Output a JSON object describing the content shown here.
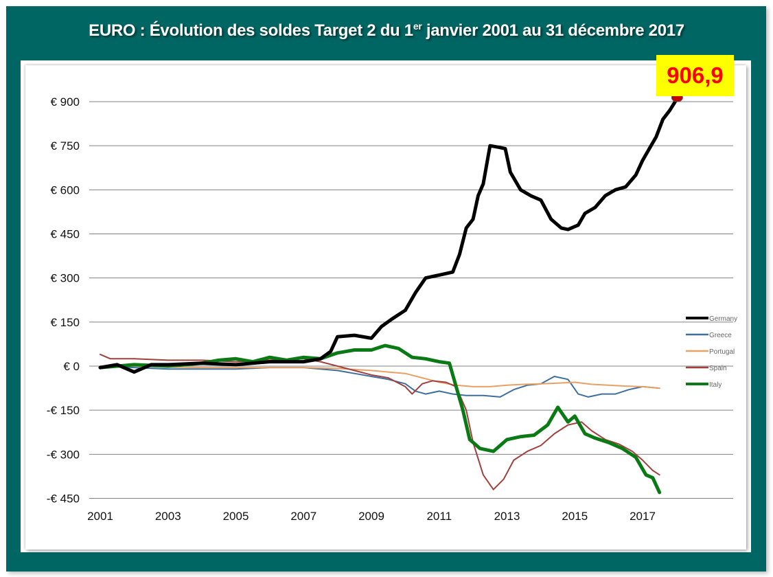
{
  "title": {
    "prefix": "EURO : Évolution des soldes Target 2 du 1",
    "superscript": "er",
    "suffix": " janvier 2001 au 31 décembre 2017"
  },
  "callout": {
    "label": "906,9",
    "background": "#ffff00",
    "text_color": "#ff0000",
    "marker_color": "#c00000"
  },
  "colors": {
    "frame": "#006663",
    "panel": "#ffffff"
  },
  "chart_data": {
    "type": "line",
    "title": "EURO : Évolution des soldes Target 2 du 1er janvier 2001 au 31 décembre 2017",
    "xlabel": "",
    "ylabel": "",
    "xlim": [
      2001,
      2019
    ],
    "ylim": [
      -450,
      900
    ],
    "grid": true,
    "legend_position": "right",
    "y_ticks": [
      {
        "value": 900,
        "label": "€ 900"
      },
      {
        "value": 750,
        "label": "€ 750"
      },
      {
        "value": 600,
        "label": "€ 600"
      },
      {
        "value": 450,
        "label": "€ 450"
      },
      {
        "value": 300,
        "label": "€ 300"
      },
      {
        "value": 150,
        "label": "€ 150"
      },
      {
        "value": 0,
        "label": "€ 0"
      },
      {
        "value": -150,
        "label": "-€ 150"
      },
      {
        "value": -300,
        "label": "-€ 300"
      },
      {
        "value": -450,
        "label": "-€ 450"
      }
    ],
    "x_ticks": [
      {
        "value": 2001,
        "label": "2001"
      },
      {
        "value": 2003,
        "label": "2003"
      },
      {
        "value": 2005,
        "label": "2005"
      },
      {
        "value": 2007,
        "label": "2007"
      },
      {
        "value": 2009,
        "label": "2009"
      },
      {
        "value": 2011,
        "label": "2011"
      },
      {
        "value": 2013,
        "label": "2013"
      },
      {
        "value": 2015,
        "label": "2015"
      },
      {
        "value": 2017,
        "label": "2017"
      }
    ],
    "series": [
      {
        "name": "Germany",
        "color": "#000000",
        "width": 5,
        "x": [
          2001,
          2001.5,
          2002,
          2002.5,
          2003,
          2004,
          2005,
          2006,
          2007,
          2007.5,
          2007.8,
          2008,
          2008.5,
          2009,
          2009.3,
          2009.6,
          2010,
          2010.3,
          2010.6,
          2011,
          2011.4,
          2011.6,
          2011.8,
          2012,
          2012.15,
          2012.3,
          2012.5,
          2012.75,
          2012.95,
          2013.1,
          2013.4,
          2013.7,
          2014,
          2014.3,
          2014.6,
          2014.8,
          2015.1,
          2015.3,
          2015.6,
          2015.9,
          2016.2,
          2016.5,
          2016.8,
          2017,
          2017.2,
          2017.4,
          2017.6,
          2017.8,
          2018
        ],
        "y": [
          -5,
          5,
          -20,
          5,
          5,
          10,
          5,
          15,
          15,
          25,
          50,
          100,
          105,
          95,
          135,
          160,
          190,
          250,
          300,
          310,
          320,
          380,
          470,
          500,
          580,
          620,
          750,
          745,
          740,
          660,
          600,
          580,
          565,
          500,
          470,
          465,
          480,
          520,
          540,
          580,
          600,
          610,
          650,
          700,
          740,
          780,
          840,
          870,
          906.9
        ]
      },
      {
        "name": "Greece",
        "color": "#3d6f9c",
        "width": 2,
        "x": [
          2001,
          2002,
          2003,
          2004,
          2005,
          2006,
          2007,
          2008,
          2008.5,
          2009,
          2009.5,
          2010,
          2010.3,
          2010.6,
          2011,
          2011.4,
          2011.8,
          2012.3,
          2012.8,
          2013.2,
          2013.6,
          2014,
          2014.4,
          2014.8,
          2015.1,
          2015.4,
          2015.8,
          2016.2,
          2016.6,
          2017,
          2017.5
        ],
        "y": [
          0,
          -5,
          -10,
          -10,
          -10,
          -5,
          -5,
          -15,
          -25,
          -35,
          -45,
          -60,
          -85,
          -95,
          -85,
          -95,
          -100,
          -100,
          -105,
          -80,
          -65,
          -60,
          -35,
          -45,
          -95,
          -105,
          -95,
          -95,
          -80,
          -70,
          -75
        ]
      },
      {
        "name": "Portugal",
        "color": "#e8a064",
        "width": 2,
        "x": [
          2001,
          2002,
          2003,
          2004,
          2005,
          2006,
          2007,
          2008,
          2009,
          2009.5,
          2010,
          2010.5,
          2011,
          2011.5,
          2012,
          2012.5,
          2013,
          2013.5,
          2014,
          2014.5,
          2015,
          2015.5,
          2016,
          2016.5,
          2017,
          2017.5
        ],
        "y": [
          0,
          0,
          -3,
          -5,
          -5,
          -5,
          -5,
          -8,
          -15,
          -20,
          -25,
          -40,
          -55,
          -65,
          -70,
          -70,
          -65,
          -62,
          -60,
          -58,
          -55,
          -62,
          -65,
          -68,
          -70,
          -75
        ]
      },
      {
        "name": "Spain",
        "color": "#a0403c",
        "width": 2,
        "x": [
          2001,
          2001.3,
          2002,
          2003,
          2004,
          2005,
          2006,
          2007,
          2007.5,
          2008,
          2008.5,
          2009,
          2009.5,
          2010,
          2010.2,
          2010.5,
          2010.8,
          2011.2,
          2011.5,
          2011.8,
          2012,
          2012.3,
          2012.6,
          2012.9,
          2013.2,
          2013.6,
          2014,
          2014.4,
          2014.8,
          2015.2,
          2015.5,
          2015.9,
          2016.3,
          2016.7,
          2017,
          2017.3,
          2017.5
        ],
        "y": [
          40,
          25,
          25,
          20,
          20,
          15,
          20,
          25,
          15,
          0,
          -15,
          -30,
          -40,
          -70,
          -95,
          -60,
          -50,
          -55,
          -70,
          -150,
          -260,
          -370,
          -420,
          -385,
          -320,
          -290,
          -270,
          -230,
          -200,
          -190,
          -220,
          -250,
          -265,
          -290,
          -320,
          -355,
          -370
        ]
      },
      {
        "name": "Italy",
        "color": "#0a7a14",
        "width": 5,
        "x": [
          2001,
          2002,
          2003,
          2004,
          2004.5,
          2005,
          2005.5,
          2006,
          2006.5,
          2007,
          2007.5,
          2008,
          2008.5,
          2009,
          2009.4,
          2009.8,
          2010.2,
          2010.6,
          2011,
          2011.3,
          2011.45,
          2011.7,
          2011.9,
          2012.2,
          2012.6,
          2013,
          2013.4,
          2013.8,
          2014.2,
          2014.5,
          2014.8,
          2015,
          2015.3,
          2015.6,
          2016,
          2016.4,
          2016.8,
          2017.1,
          2017.3,
          2017.5
        ],
        "y": [
          -5,
          5,
          0,
          10,
          20,
          25,
          15,
          30,
          20,
          30,
          25,
          45,
          55,
          55,
          70,
          60,
          30,
          25,
          15,
          10,
          -50,
          -150,
          -250,
          -280,
          -290,
          -250,
          -240,
          -235,
          -200,
          -140,
          -190,
          -170,
          -230,
          -245,
          -260,
          -280,
          -310,
          -370,
          -380,
          -430
        ]
      }
    ]
  }
}
